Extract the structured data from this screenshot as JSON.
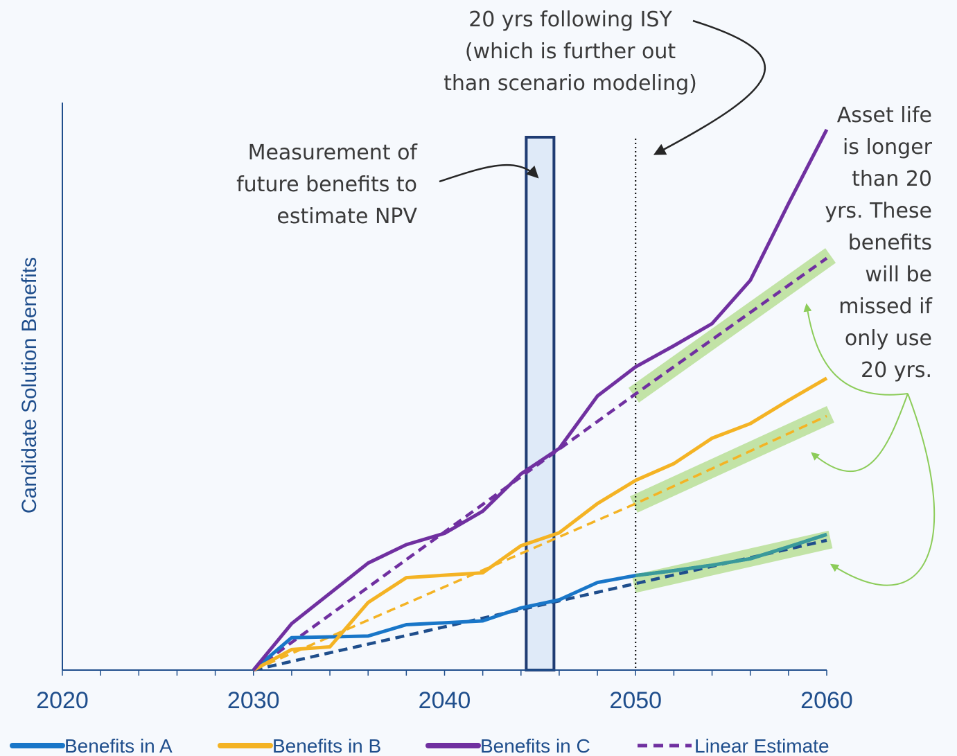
{
  "chart_data": {
    "type": "line",
    "ylabel": "Candidate Solution Benefits",
    "xlabel": "",
    "xlim": [
      2020,
      2060
    ],
    "ylim": [
      0,
      100
    ],
    "x_ticks": [
      "2020",
      "2030",
      "2040",
      "2050",
      "2060"
    ],
    "series": [
      {
        "name": "Benefits in A",
        "color": "#1976c8",
        "x": [
          2030,
          2032,
          2036,
          2038,
          2042,
          2044,
          2046,
          2048,
          2050,
          2052,
          2054,
          2056,
          2058,
          2060
        ],
        "y": [
          0,
          6.0,
          6.3,
          8.4,
          9.1,
          11.5,
          13.0,
          16.2,
          17.5,
          18.4,
          19.4,
          20.6,
          22.8,
          25.1
        ]
      },
      {
        "name": "Benefits in B",
        "color": "#f4b324",
        "x": [
          2030,
          2032,
          2034,
          2036,
          2038,
          2042,
          2044,
          2046,
          2048,
          2050,
          2052,
          2054,
          2056,
          2058,
          2060
        ],
        "y": [
          0,
          3.8,
          4.3,
          12.5,
          17.1,
          18.0,
          23.0,
          25.4,
          30.8,
          35.1,
          38.2,
          42.9,
          45.6,
          49.9,
          54.0
        ]
      },
      {
        "name": "Benefits in C",
        "color": "#7030a0",
        "x": [
          2030,
          2032,
          2036,
          2038,
          2040,
          2042,
          2044,
          2046,
          2048,
          2050,
          2052,
          2054,
          2056,
          2058,
          2060
        ],
        "y": [
          0,
          8.6,
          19.8,
          23.2,
          25.3,
          29.4,
          36.3,
          41.0,
          50.7,
          56.1,
          60.0,
          64.1,
          72.1,
          86.3,
          100
        ]
      }
    ],
    "linear_estimates": [
      {
        "name": "Linear Estimate A",
        "color": "#1f4e8c",
        "x": [
          2030,
          2050,
          2060
        ],
        "y": [
          0,
          16.0,
          24.0
        ]
      },
      {
        "name": "Linear Estimate B",
        "color": "#f4b324",
        "x": [
          2030,
          2050,
          2060
        ],
        "y": [
          0,
          30.8,
          47.0
        ]
      },
      {
        "name": "Linear Estimate C",
        "color": "#7030a0",
        "x": [
          2030,
          2050,
          2060
        ],
        "y": [
          0,
          51.1,
          76.2
        ]
      }
    ],
    "highlight_band_year": 2045,
    "vertical_line_year": 2050
  },
  "legend": [
    {
      "label": "Benefits in A",
      "color": "#1976c8",
      "style": "solid"
    },
    {
      "label": "Benefits in B",
      "color": "#f4b324",
      "style": "solid"
    },
    {
      "label": "Benefits in C",
      "color": "#7030a0",
      "style": "solid"
    },
    {
      "label": "Linear Estimate",
      "color": "#7030a0",
      "style": "dashed"
    }
  ],
  "annotations": {
    "isy_note": [
      "20 yrs following ISY",
      "(which is further out",
      "than scenario modeling)"
    ],
    "npv_note": [
      "Measurement of",
      "future benefits to",
      "estimate NPV"
    ],
    "asset_note": [
      "Asset life",
      "is longer",
      "than 20",
      "yrs. These",
      "benefits",
      "will be",
      "missed if",
      "only use",
      "20 yrs."
    ]
  },
  "colors": {
    "axis": "#1f4e8c",
    "band_fill": "#dbe8f7",
    "band_stroke": "#1f3c73",
    "highlight_green": "#c2e3a6",
    "arrow_green": "#8ccc59",
    "arrow_dark": "#262626"
  }
}
